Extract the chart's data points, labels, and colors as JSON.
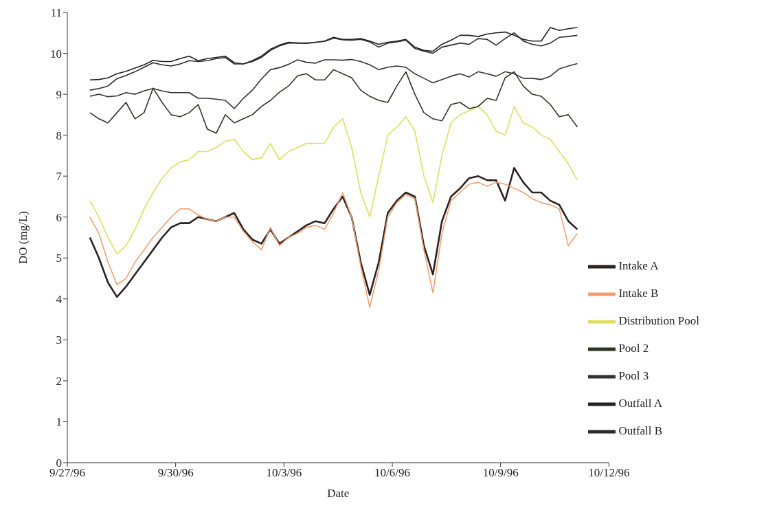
{
  "chart_data": {
    "type": "line",
    "xlabel": "Date",
    "ylabel": "DO (mg/L)",
    "xlim": [
      "1996-09-27",
      "1996-10-12"
    ],
    "xticks": [
      {
        "value": "1996-09-27",
        "label": "9/27/96"
      },
      {
        "value": "1996-09-30",
        "label": "9/30/96"
      },
      {
        "value": "1996-10-03",
        "label": "10/3/96"
      },
      {
        "value": "1996-10-06",
        "label": "10/6/96"
      },
      {
        "value": "1996-10-09",
        "label": "10/9/96"
      },
      {
        "value": "1996-10-12",
        "label": "10/12/96"
      }
    ],
    "ylim": [
      0,
      11
    ],
    "yticks": [
      0,
      1,
      2,
      3,
      4,
      5,
      6,
      7,
      8,
      9,
      10,
      11
    ],
    "grid": false,
    "legend": "bottom right",
    "marker": "none",
    "line_style": "solid",
    "x": [
      "1996-09-27T15:00",
      "1996-09-27T21:00",
      "1996-09-28T03:00",
      "1996-09-28T09:00",
      "1996-09-28T15:00",
      "1996-09-28T21:00",
      "1996-09-29T03:00",
      "1996-09-29T09:00",
      "1996-09-29T15:00",
      "1996-09-29T21:00",
      "1996-09-30T03:00",
      "1996-09-30T09:00",
      "1996-09-30T15:00",
      "1996-09-30T21:00",
      "1996-10-01T03:00",
      "1996-10-01T09:00",
      "1996-10-01T15:00",
      "1996-10-01T21:00",
      "1996-10-02T03:00",
      "1996-10-02T09:00",
      "1996-10-02T15:00",
      "1996-10-02T21:00",
      "1996-10-03T03:00",
      "1996-10-03T09:00",
      "1996-10-03T15:00",
      "1996-10-03T21:00",
      "1996-10-04T03:00",
      "1996-10-04T09:00",
      "1996-10-04T15:00",
      "1996-10-04T21:00",
      "1996-10-05T03:00",
      "1996-10-05T09:00",
      "1996-10-05T15:00",
      "1996-10-05T21:00",
      "1996-10-06T03:00",
      "1996-10-06T09:00",
      "1996-10-06T15:00",
      "1996-10-06T21:00",
      "1996-10-07T03:00",
      "1996-10-07T09:00",
      "1996-10-07T15:00",
      "1996-10-07T21:00",
      "1996-10-08T03:00",
      "1996-10-08T09:00",
      "1996-10-08T15:00",
      "1996-10-08T21:00",
      "1996-10-09T03:00",
      "1996-10-09T09:00",
      "1996-10-09T15:00",
      "1996-10-09T21:00",
      "1996-10-10T03:00",
      "1996-10-10T09:00",
      "1996-10-10T15:00",
      "1996-10-10T21:00",
      "1996-10-11T03:00"
    ],
    "series": [
      {
        "name": "Intake A",
        "color": "#2b2222",
        "values": [
          5.5,
          5.0,
          4.4,
          4.05,
          4.3,
          4.6,
          4.9,
          5.2,
          5.5,
          5.75,
          5.85,
          5.85,
          6.0,
          5.95,
          5.9,
          6.0,
          6.1,
          5.7,
          5.45,
          5.35,
          5.7,
          5.35,
          5.5,
          5.65,
          5.8,
          5.9,
          5.85,
          6.2,
          6.5,
          6.0,
          4.9,
          4.1,
          4.9,
          6.1,
          6.4,
          6.6,
          6.5,
          5.3,
          4.6,
          5.9,
          6.5,
          6.7,
          6.95,
          7.0,
          6.9,
          6.9,
          6.4,
          7.2,
          6.85,
          6.6,
          6.6,
          6.4,
          6.3,
          5.9,
          5.7
        ]
      },
      {
        "name": "Intake B",
        "color": "#f0a070",
        "values": [
          6.0,
          5.6,
          4.9,
          4.35,
          4.5,
          4.9,
          5.2,
          5.5,
          5.75,
          6.0,
          6.2,
          6.2,
          6.05,
          5.95,
          5.9,
          6.0,
          6.0,
          5.65,
          5.4,
          5.2,
          5.75,
          5.3,
          5.5,
          5.6,
          5.75,
          5.8,
          5.7,
          6.1,
          6.6,
          6.0,
          4.8,
          3.8,
          4.7,
          6.0,
          6.35,
          6.55,
          6.45,
          5.2,
          4.15,
          5.6,
          6.4,
          6.6,
          6.8,
          6.85,
          6.75,
          6.85,
          6.8,
          6.7,
          6.6,
          6.45,
          6.35,
          6.3,
          6.2,
          5.3,
          5.6
        ]
      },
      {
        "name": "Distribution Pool",
        "color": "#dede60",
        "values": [
          6.4,
          6.0,
          5.5,
          5.1,
          5.3,
          5.7,
          6.2,
          6.6,
          6.95,
          7.2,
          7.35,
          7.4,
          7.6,
          7.6,
          7.7,
          7.85,
          7.9,
          7.6,
          7.4,
          7.45,
          7.8,
          7.4,
          7.6,
          7.7,
          7.8,
          7.8,
          7.8,
          8.2,
          8.4,
          7.7,
          6.6,
          6.0,
          7.0,
          8.0,
          8.2,
          8.45,
          8.1,
          7.0,
          6.35,
          7.5,
          8.3,
          8.5,
          8.6,
          8.7,
          8.5,
          8.1,
          8.0,
          8.7,
          8.3,
          8.2,
          8.0,
          7.9,
          7.6,
          7.3,
          6.9
        ]
      },
      {
        "name": "Pool 2",
        "color": "#2e3524",
        "values": [
          8.55,
          8.4,
          8.3,
          8.55,
          8.8,
          8.4,
          8.55,
          9.15,
          8.8,
          8.5,
          8.45,
          8.55,
          8.75,
          8.15,
          8.05,
          8.5,
          8.3,
          8.4,
          8.5,
          8.7,
          8.85,
          9.05,
          9.2,
          9.45,
          9.5,
          9.35,
          9.35,
          9.6,
          9.5,
          9.4,
          9.1,
          8.95,
          8.85,
          8.8,
          9.2,
          9.55,
          9.0,
          8.55,
          8.4,
          8.35,
          8.75,
          8.8,
          8.65,
          8.7,
          8.9,
          8.85,
          9.4,
          9.55,
          9.2,
          9.0,
          8.95,
          8.75,
          8.45,
          8.5,
          8.2
        ]
      },
      {
        "name": "Pool 3",
        "color": "#333333",
        "values": [
          8.95,
          9.0,
          8.94,
          8.96,
          9.04,
          9.0,
          9.08,
          9.14,
          9.08,
          9.04,
          9.04,
          9.04,
          8.9,
          8.9,
          8.88,
          8.85,
          8.65,
          8.9,
          9.1,
          9.37,
          9.6,
          9.65,
          9.73,
          9.84,
          9.78,
          9.76,
          9.84,
          9.84,
          9.83,
          9.85,
          9.8,
          9.72,
          9.6,
          9.66,
          9.69,
          9.66,
          9.5,
          9.39,
          9.28,
          9.36,
          9.44,
          9.5,
          9.42,
          9.55,
          9.5,
          9.44,
          9.55,
          9.5,
          9.39,
          9.39,
          9.36,
          9.44,
          9.62,
          9.69,
          9.75
        ]
      },
      {
        "name": "Outfall A",
        "color": "#222222",
        "values": [
          9.35,
          9.36,
          9.4,
          9.5,
          9.56,
          9.64,
          9.72,
          9.83,
          9.8,
          9.8,
          9.87,
          9.93,
          9.82,
          9.87,
          9.9,
          9.93,
          9.77,
          9.74,
          9.82,
          9.93,
          10.1,
          10.2,
          10.27,
          10.25,
          10.25,
          10.27,
          10.3,
          10.39,
          10.34,
          10.34,
          10.36,
          10.3,
          10.22,
          10.27,
          10.3,
          10.34,
          10.15,
          10.07,
          10.05,
          10.22,
          10.32,
          10.44,
          10.44,
          10.41,
          10.47,
          10.5,
          10.52,
          10.44,
          10.34,
          10.3,
          10.3,
          10.63,
          10.56,
          10.6,
          10.63
        ]
      },
      {
        "name": "Outfall B",
        "color": "#2a2a2a",
        "values": [
          9.1,
          9.14,
          9.2,
          9.38,
          9.46,
          9.55,
          9.66,
          9.77,
          9.72,
          9.69,
          9.74,
          9.82,
          9.8,
          9.82,
          9.87,
          9.9,
          9.74,
          9.74,
          9.8,
          9.9,
          10.07,
          10.18,
          10.25,
          10.25,
          10.24,
          10.27,
          10.29,
          10.37,
          10.33,
          10.32,
          10.34,
          10.28,
          10.15,
          10.25,
          10.28,
          10.32,
          10.12,
          10.05,
          10.0,
          10.15,
          10.2,
          10.25,
          10.22,
          10.36,
          10.34,
          10.2,
          10.36,
          10.5,
          10.3,
          10.22,
          10.18,
          10.25,
          10.39,
          10.41,
          10.44
        ]
      }
    ]
  }
}
